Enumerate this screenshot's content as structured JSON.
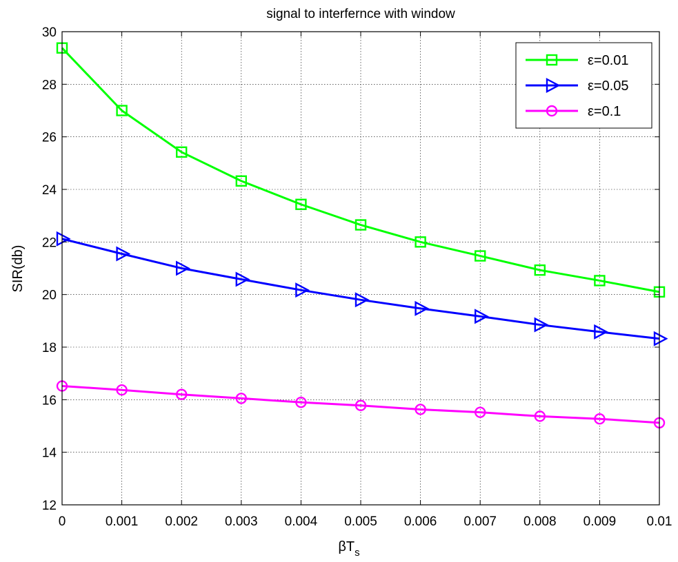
{
  "chart_data": {
    "type": "line",
    "title": "signal to interfernce with window",
    "xlabel_main": "βT",
    "xlabel_sub": "s",
    "ylabel": "SIR(db)",
    "x": [
      0,
      0.001,
      0.002,
      0.003,
      0.004,
      0.005,
      0.006,
      0.007,
      0.008,
      0.009,
      0.01
    ],
    "x_tick_labels": [
      "0",
      "0.001",
      "0.002",
      "0.003",
      "0.004",
      "0.005",
      "0.006",
      "0.007",
      "0.008",
      "0.009",
      "0.01"
    ],
    "xlim": [
      0,
      0.01
    ],
    "ylim": [
      12,
      30
    ],
    "y_ticks": [
      12,
      14,
      16,
      18,
      20,
      22,
      24,
      26,
      28,
      30
    ],
    "grid": true,
    "legend_position": "top-right",
    "series": [
      {
        "name": "ε=0.01",
        "color": "#00ff00",
        "marker": "square",
        "values": [
          29.38,
          27.0,
          25.42,
          24.32,
          23.43,
          22.65,
          22.0,
          21.47,
          20.93,
          20.53,
          20.1
        ]
      },
      {
        "name": "ε=0.05",
        "color": "#0000ff",
        "marker": "triangle-right",
        "values": [
          22.12,
          21.55,
          21.0,
          20.58,
          20.17,
          19.8,
          19.47,
          19.17,
          18.85,
          18.58,
          18.32
        ]
      },
      {
        "name": "ε=0.1",
        "color": "#ff00ff",
        "marker": "circle",
        "values": [
          16.52,
          16.37,
          16.2,
          16.05,
          15.9,
          15.78,
          15.63,
          15.52,
          15.37,
          15.27,
          15.12
        ]
      }
    ]
  }
}
